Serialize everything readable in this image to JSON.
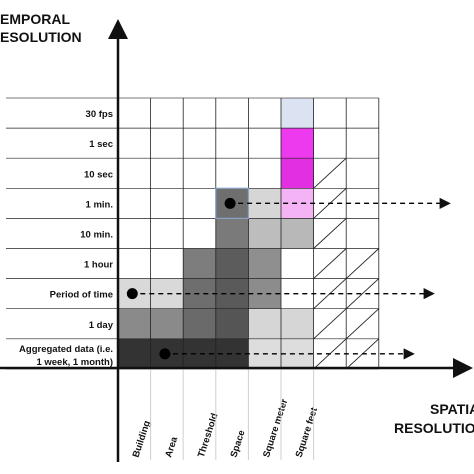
{
  "axes": {
    "y_title_line1": "EMPORAL",
    "y_title_line2": "ESOLUTION",
    "x_title_line1": "SPATIA",
    "x_title_line2": "RESOLUTIO"
  },
  "rows": [
    {
      "label": "30 fps"
    },
    {
      "label": "1 sec"
    },
    {
      "label": "10 sec"
    },
    {
      "label": "1 min."
    },
    {
      "label": "10 min."
    },
    {
      "label": "1 hour"
    },
    {
      "label": "Period of time"
    },
    {
      "label": "1 day"
    },
    {
      "label": "Aggregated data (i.e.",
      "label2": "1 week, 1 month)"
    }
  ],
  "columns": [
    {
      "label": "Building"
    },
    {
      "label": "Area"
    },
    {
      "label": "Threshold"
    },
    {
      "label": "Space"
    },
    {
      "label": "Square meter"
    },
    {
      "label": "Square feet"
    },
    {
      "label": ""
    },
    {
      "label": ""
    }
  ],
  "cells": [
    {
      "row": 0,
      "col": 5,
      "color": "#dbe3f3"
    },
    {
      "row": 1,
      "col": 5,
      "color": "#ee3aee"
    },
    {
      "row": 2,
      "col": 5,
      "color": "#e22fe2"
    },
    {
      "row": 3,
      "col": 3,
      "color": "#6f6f6f"
    },
    {
      "row": 3,
      "col": 4,
      "color": "#d6d6d6"
    },
    {
      "row": 3,
      "col": 5,
      "color": "#f4b3f4"
    },
    {
      "row": 4,
      "col": 3,
      "color": "#7a7a7a"
    },
    {
      "row": 4,
      "col": 4,
      "color": "#bdbdbd"
    },
    {
      "row": 4,
      "col": 5,
      "color": "#b8b8b8"
    },
    {
      "row": 5,
      "col": 2,
      "color": "#7d7d7d"
    },
    {
      "row": 5,
      "col": 3,
      "color": "#5c5c5c"
    },
    {
      "row": 5,
      "col": 4,
      "color": "#8f8f8f"
    },
    {
      "row": 6,
      "col": 0,
      "color": "#d9d9d9"
    },
    {
      "row": 6,
      "col": 1,
      "color": "#d9d9d9"
    },
    {
      "row": 6,
      "col": 2,
      "color": "#6e6e6e"
    },
    {
      "row": 6,
      "col": 3,
      "color": "#5a5a5a"
    },
    {
      "row": 6,
      "col": 4,
      "color": "#8c8c8c"
    },
    {
      "row": 7,
      "col": 0,
      "color": "#8a8a8a"
    },
    {
      "row": 7,
      "col": 1,
      "color": "#8a8a8a"
    },
    {
      "row": 7,
      "col": 2,
      "color": "#6a6a6a"
    },
    {
      "row": 7,
      "col": 3,
      "color": "#555555"
    },
    {
      "row": 7,
      "col": 4,
      "color": "#d6d6d6"
    },
    {
      "row": 7,
      "col": 5,
      "color": "#d6d6d6"
    },
    {
      "row": 8,
      "col": 0,
      "color": "#333333"
    },
    {
      "row": 8,
      "col": 1,
      "color": "#333333"
    },
    {
      "row": 8,
      "col": 2,
      "color": "#333333"
    },
    {
      "row": 8,
      "col": 3,
      "color": "#333333"
    },
    {
      "row": 8,
      "col": 4,
      "color": "#dddddd"
    },
    {
      "row": 8,
      "col": 5,
      "color": "#dddddd"
    }
  ],
  "hatched_from_row": {
    "col6": 2,
    "col7": 5
  },
  "markers": [
    {
      "row": 3,
      "col": 3
    },
    {
      "row": 6,
      "col": 0
    },
    {
      "row": 8,
      "col": 1
    }
  ],
  "colors": {
    "grid": "#222222",
    "axis": "#111111",
    "marker": "#000000"
  }
}
